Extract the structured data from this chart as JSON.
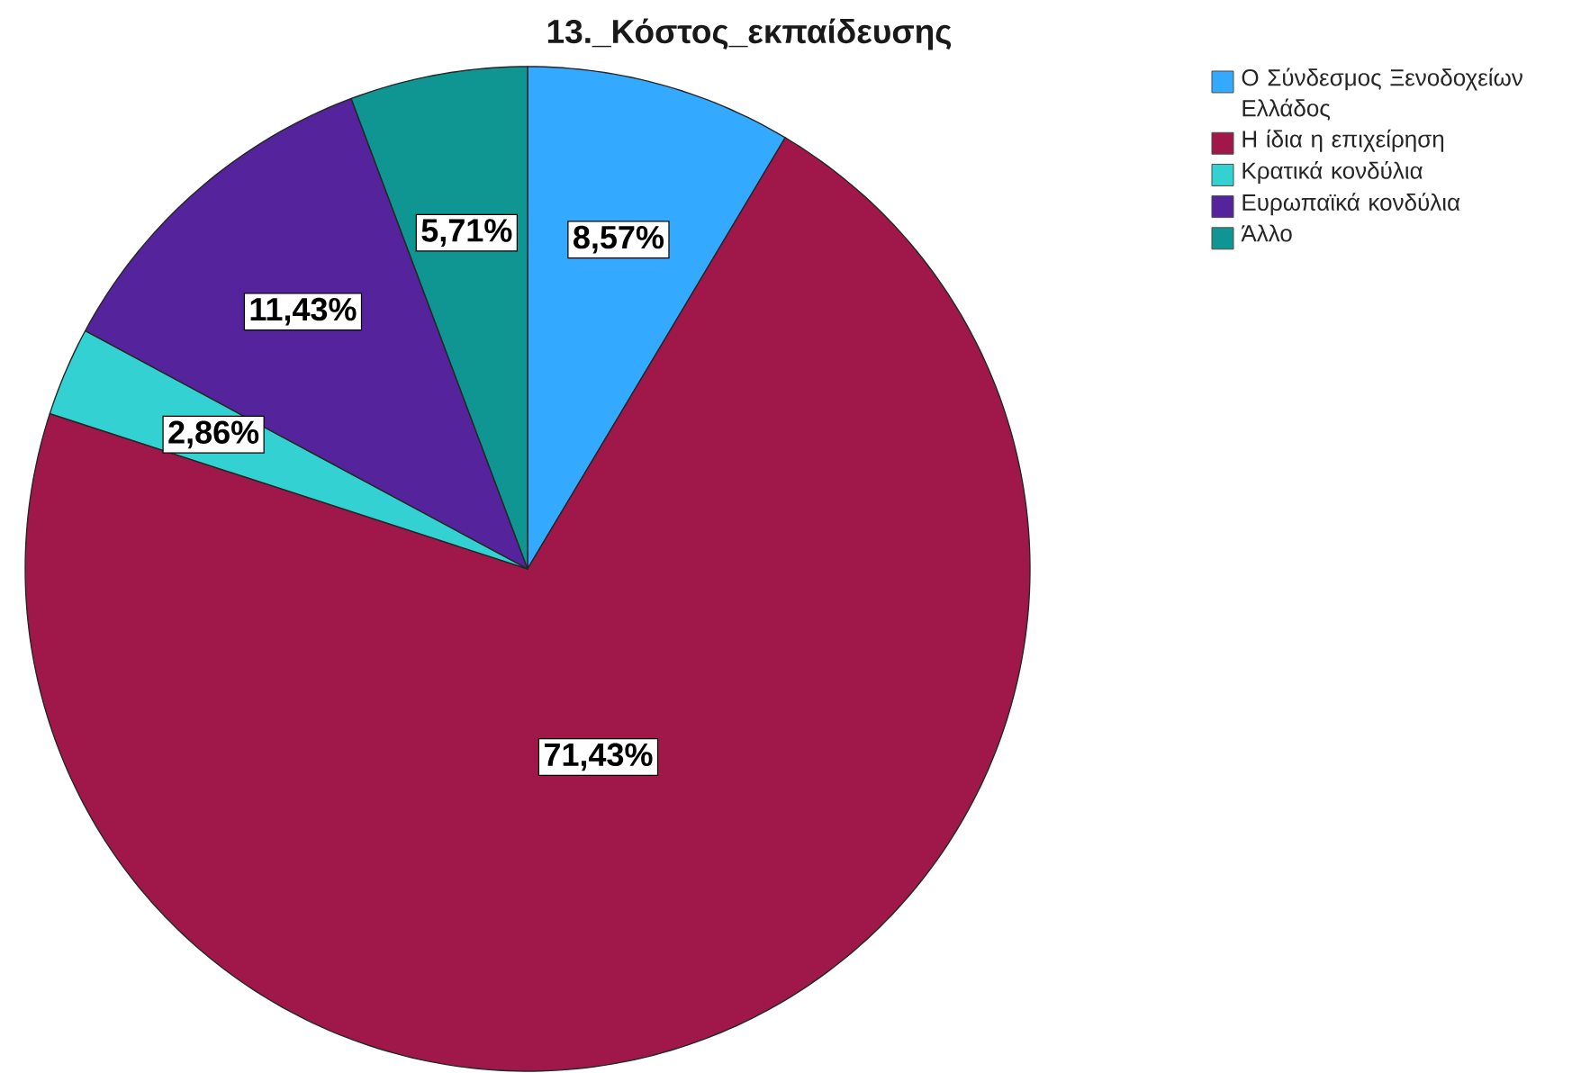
{
  "chart_data": {
    "type": "pie",
    "title": "13._Κόστος_εκπαίδευσης",
    "categories": [
      "Ο Σύνδεσμος Ξενοδοχείων Ελλάδος",
      "Η ίδια η επιχείρηση",
      "Κρατικά κονδύλια",
      "Ευρωπαϊκά κονδύλια",
      "Άλλο"
    ],
    "values": [
      8.57,
      71.43,
      2.86,
      11.43,
      5.71
    ],
    "colors": [
      "#33aaff",
      "#a0184a",
      "#33d1d1",
      "#55239b",
      "#109692"
    ],
    "value_labels": [
      "8,57%",
      "71,43%",
      "2,86%",
      "11,43%",
      "5,71%"
    ],
    "legend": "top right"
  }
}
